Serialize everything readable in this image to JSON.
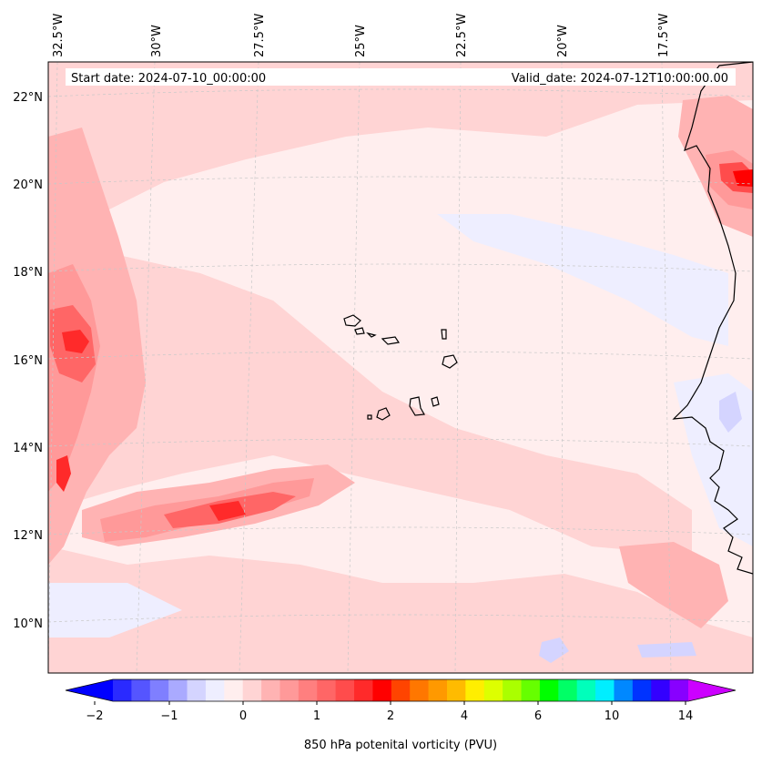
{
  "map": {
    "start_label": "Start date: 2024-07-10_00:00:00",
    "valid_label": "Valid_date: 2024-07-12T10:00:00.00",
    "lon_labels": [
      "32.5°W",
      "30°W",
      "27.5°W",
      "25°W",
      "22.5°W",
      "20°W",
      "17.5°W"
    ],
    "lat_labels": [
      "22°N",
      "20°N",
      "18°N",
      "16°N",
      "14°N",
      "12°N",
      "10°N"
    ],
    "colors": {
      "land_outline": "#000000",
      "gridline": "#c8c8c8",
      "banner_bg": "#ffffff"
    }
  },
  "colorbar": {
    "label": "850 hPa potenital vorticity (PVU)",
    "tick_labels": [
      "−2",
      "−1",
      "0",
      "1",
      "2",
      "4",
      "6",
      "10",
      "14"
    ],
    "colors": [
      "#0000ff",
      "#2a2aff",
      "#5555ff",
      "#7f7fff",
      "#aaaaff",
      "#d4d4ff",
      "#eeeeff",
      "#ffeeee",
      "#ffd4d4",
      "#ffb3b3",
      "#ff9999",
      "#ff7f7f",
      "#ff6666",
      "#ff4c4c",
      "#ff2a2a",
      "#ff0000",
      "#ff4400",
      "#ff7700",
      "#ff9900",
      "#ffbb00",
      "#ffee00",
      "#ddff00",
      "#aaff00",
      "#66ff00",
      "#00ff00",
      "#00ff66",
      "#00ffbb",
      "#00eeff",
      "#0088ff",
      "#0033ff",
      "#3300ff",
      "#8800ff",
      "#cc00ff"
    ]
  }
}
